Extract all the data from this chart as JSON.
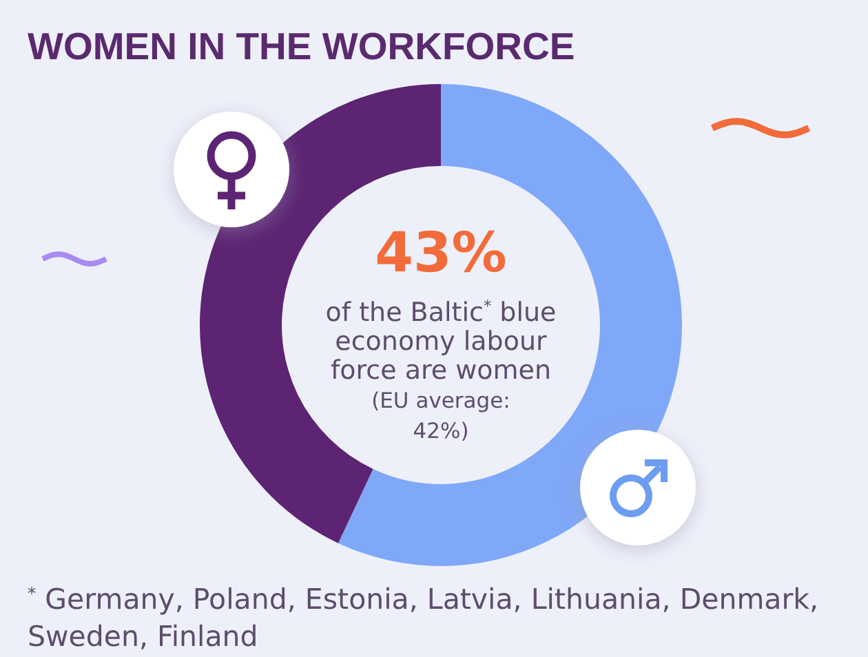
{
  "chart_data": {
    "type": "donut",
    "title": "WOMEN IN THE WORKFORCE",
    "categories": [
      null,
      null
    ],
    "values": [
      57,
      43
    ],
    "colors": [
      "#80a8f8",
      "#5c2472"
    ],
    "annotations": [
      "43%",
      "of the Baltic$^{*}$ blue economy labour force are women",
      "(EU average: 42%)",
      "$^{*}$ Germany, Poland, Estonia, Latvia, Lithuania, Denmark, Sweden, Finland"
    ]
  }
}
